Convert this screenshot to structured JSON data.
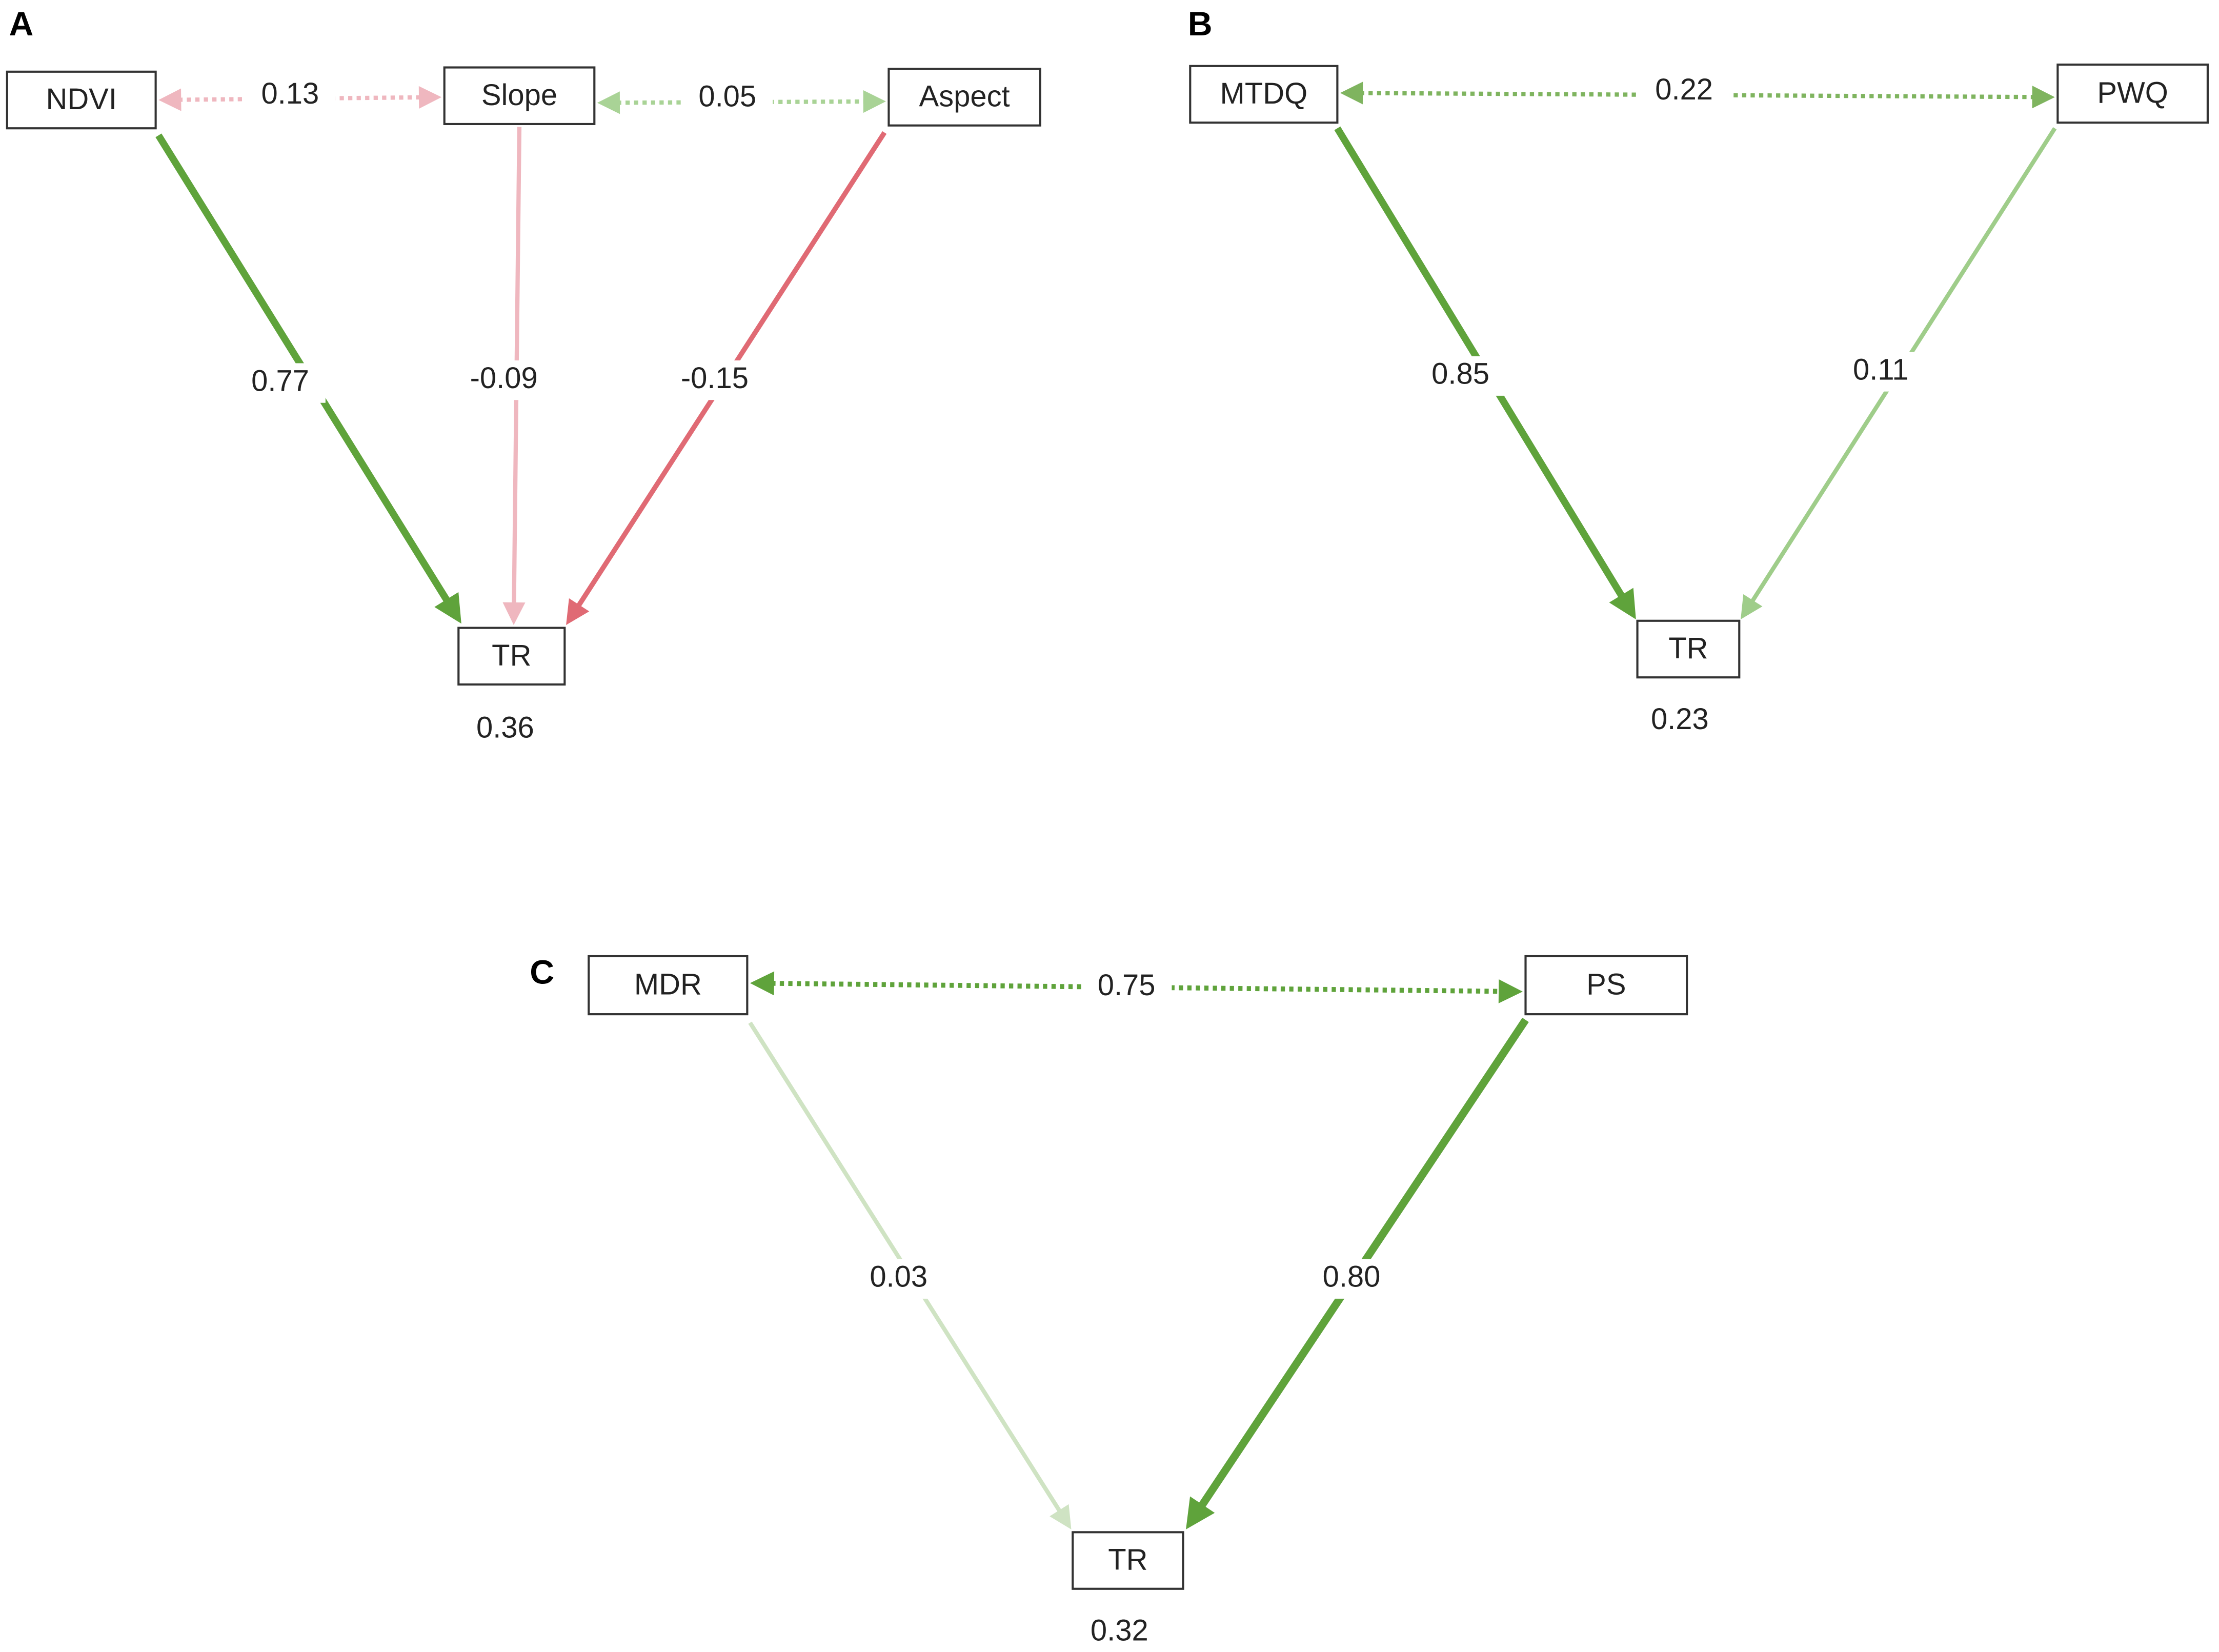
{
  "panels": [
    {
      "label": "A",
      "nodes": [
        "NDVI",
        "Slope",
        "Aspect",
        "TR"
      ],
      "edges": [
        "0.13",
        "0.05",
        "0.77",
        "-0.09",
        "-0.15"
      ],
      "r2": "0.36"
    },
    {
      "label": "B",
      "nodes": [
        "MTDQ",
        "PWQ",
        "TR"
      ],
      "edges": [
        "0.22",
        "0.85",
        "0.11"
      ],
      "r2": "0.23"
    },
    {
      "label": "C",
      "nodes": [
        "MDR",
        "PS",
        "TR"
      ],
      "edges": [
        "0.75",
        "0.03",
        "0.80"
      ],
      "r2": "0.32"
    }
  ]
}
